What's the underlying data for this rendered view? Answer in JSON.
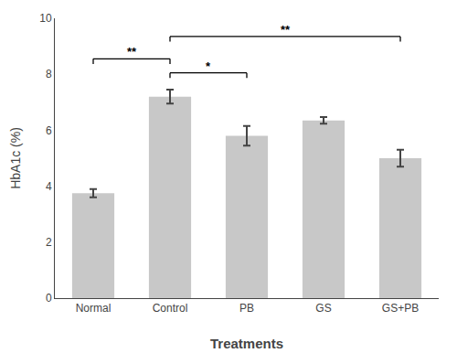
{
  "chart_data": {
    "type": "bar",
    "categories": [
      "Normal",
      "Control",
      "PB",
      "GS",
      "GS+PB"
    ],
    "values": [
      3.75,
      7.2,
      5.8,
      6.35,
      5.0
    ],
    "errors": [
      0.15,
      0.25,
      0.35,
      0.12,
      0.3
    ],
    "color": "#c8c8c8",
    "x_label": "Treatments",
    "y_label": "HbA1c (%)",
    "ylim": [
      0,
      10
    ],
    "yticks": [
      0,
      2,
      4,
      6,
      8,
      10
    ],
    "grid": false,
    "annotations": [
      {
        "x1": "Normal",
        "x2": "Control",
        "y": 8.55,
        "text": "**"
      },
      {
        "x1": "Control",
        "x2": "PB",
        "y": 8.05,
        "text": "*"
      },
      {
        "x1": "Control",
        "x2": "GS+PB",
        "y": 9.35,
        "text": "**"
      }
    ]
  }
}
